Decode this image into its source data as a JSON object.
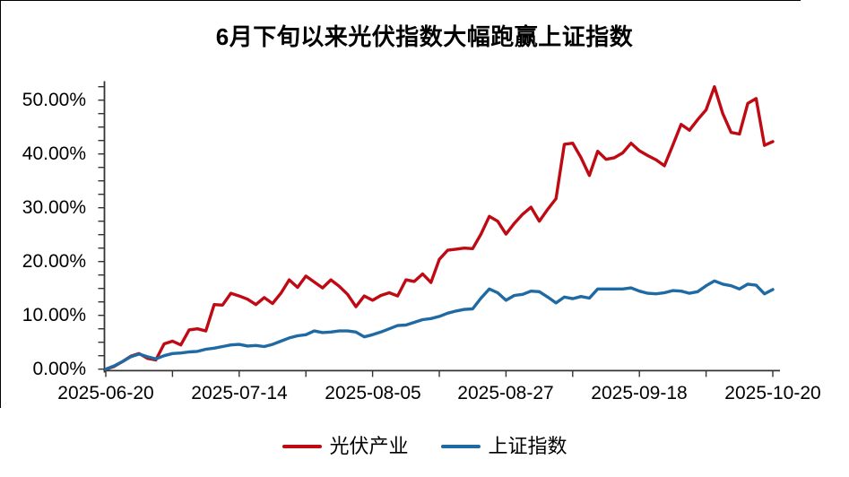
{
  "title": "6月下旬以来光伏指数大幅跑赢上证指数",
  "legend": {
    "position": "bottom-center",
    "items": [
      {
        "label": "光伏产业",
        "color": "#bf0a14"
      },
      {
        "label": "上证指数",
        "color": "#1f6aa3"
      }
    ]
  },
  "chart_data": {
    "type": "line",
    "title": "6月下旬以来光伏指数大幅跑赢上证指数",
    "grid": false,
    "background": "#ffffff",
    "axis_color": "#333333",
    "x_axis": {
      "kind": "trading-days",
      "point_count": 81,
      "minor_tick_every": 8,
      "tick_labels": [
        {
          "index": 0,
          "label": "2025-06-20"
        },
        {
          "index": 16,
          "label": "2025-07-14"
        },
        {
          "index": 32,
          "label": "2025-08-05"
        },
        {
          "index": 48,
          "label": "2025-08-27"
        },
        {
          "index": 64,
          "label": "2025-09-18"
        },
        {
          "index": 80,
          "label": "2025-10-20"
        }
      ]
    },
    "y_axis": {
      "unit": "%",
      "tick_values": [
        0,
        10,
        20,
        30,
        40,
        50
      ],
      "tick_labels": [
        "0.00%",
        "10.00%",
        "20.00%",
        "30.00%",
        "40.00%",
        "50.00%"
      ],
      "minor_tick_step": 2.5,
      "range": [
        0,
        52.5
      ]
    },
    "series": [
      {
        "name": "光伏产业",
        "color": "#bf0a14",
        "unit": "%",
        "values": [
          0.0,
          0.5,
          1.4,
          2.4,
          2.9,
          2.0,
          1.7,
          4.7,
          5.2,
          4.5,
          7.3,
          7.5,
          7.1,
          12.0,
          11.9,
          14.1,
          13.6,
          13.0,
          12.0,
          13.3,
          12.2,
          14.1,
          16.6,
          15.2,
          17.3,
          16.2,
          15.1,
          16.6,
          15.4,
          13.9,
          11.6,
          13.6,
          12.8,
          13.7,
          14.2,
          13.6,
          16.6,
          16.3,
          17.7,
          16.1,
          20.4,
          22.1,
          22.3,
          22.5,
          22.4,
          25.1,
          28.4,
          27.5,
          25.1,
          27.1,
          28.8,
          30.1,
          27.5,
          29.7,
          31.7,
          41.8,
          42.0,
          39.3,
          36.0,
          40.5,
          39.0,
          39.3,
          40.2,
          42.0,
          40.6,
          39.7,
          38.9,
          37.8,
          41.6,
          45.5,
          44.4,
          46.4,
          48.2,
          52.5,
          47.5,
          44.0,
          43.7,
          49.4,
          50.3,
          41.6,
          42.3
        ]
      },
      {
        "name": "上证指数",
        "color": "#1f6aa3",
        "unit": "%",
        "values": [
          0.0,
          0.6,
          1.4,
          2.3,
          2.8,
          2.3,
          1.9,
          2.5,
          2.9,
          3.0,
          3.2,
          3.3,
          3.7,
          3.9,
          4.2,
          4.5,
          4.6,
          4.3,
          4.4,
          4.2,
          4.6,
          5.2,
          5.8,
          6.2,
          6.4,
          7.1,
          6.8,
          6.9,
          7.1,
          7.1,
          6.9,
          6.0,
          6.4,
          6.9,
          7.5,
          8.1,
          8.2,
          8.7,
          9.2,
          9.4,
          9.8,
          10.4,
          10.8,
          11.1,
          11.2,
          13.2,
          14.9,
          14.2,
          12.8,
          13.7,
          13.9,
          14.5,
          14.4,
          13.4,
          12.3,
          13.4,
          13.1,
          13.5,
          13.2,
          14.9,
          14.9,
          14.9,
          14.9,
          15.1,
          14.5,
          14.1,
          14.0,
          14.2,
          14.6,
          14.5,
          14.1,
          14.4,
          15.5,
          16.4,
          15.8,
          15.5,
          14.9,
          15.8,
          15.6,
          14.0,
          14.8
        ]
      }
    ],
    "legend_position": "bottom-center"
  }
}
